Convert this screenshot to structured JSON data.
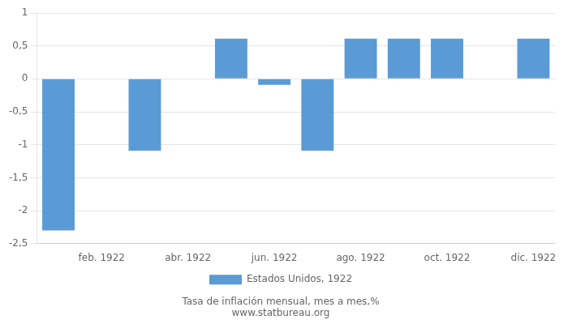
{
  "chart_data": {
    "type": "bar",
    "categories": [
      null,
      "feb. 1922",
      null,
      "abr. 1922",
      null,
      "jun. 1922",
      null,
      "ago. 1922",
      null,
      "oct. 1922",
      null,
      "dic. 1922"
    ],
    "series": [
      {
        "name": "Estados Unidos, 1922",
        "color": "#5b9bd5",
        "values": [
          -2.3,
          0.0,
          -1.09,
          0.0,
          0.61,
          -0.09,
          -1.09,
          0.61,
          0.61,
          0.61,
          0.0,
          0.61
        ]
      }
    ],
    "ylim": [
      -2.5,
      1.0
    ],
    "yticks": [
      {
        "value": -2.5,
        "label": "-2,5"
      },
      -2,
      {
        "value": -1.5,
        "label": "-1,5"
      },
      -1,
      {
        "value": -0.5,
        "label": "-0,5"
      },
      0,
      {
        "value": 0.5,
        "label": "0,5"
      },
      1
    ],
    "grid": true,
    "legend": "bottom",
    "annotations": [
      "Tasa de inflación mensual, mes a mes,%",
      "www.statbureau.org"
    ]
  }
}
